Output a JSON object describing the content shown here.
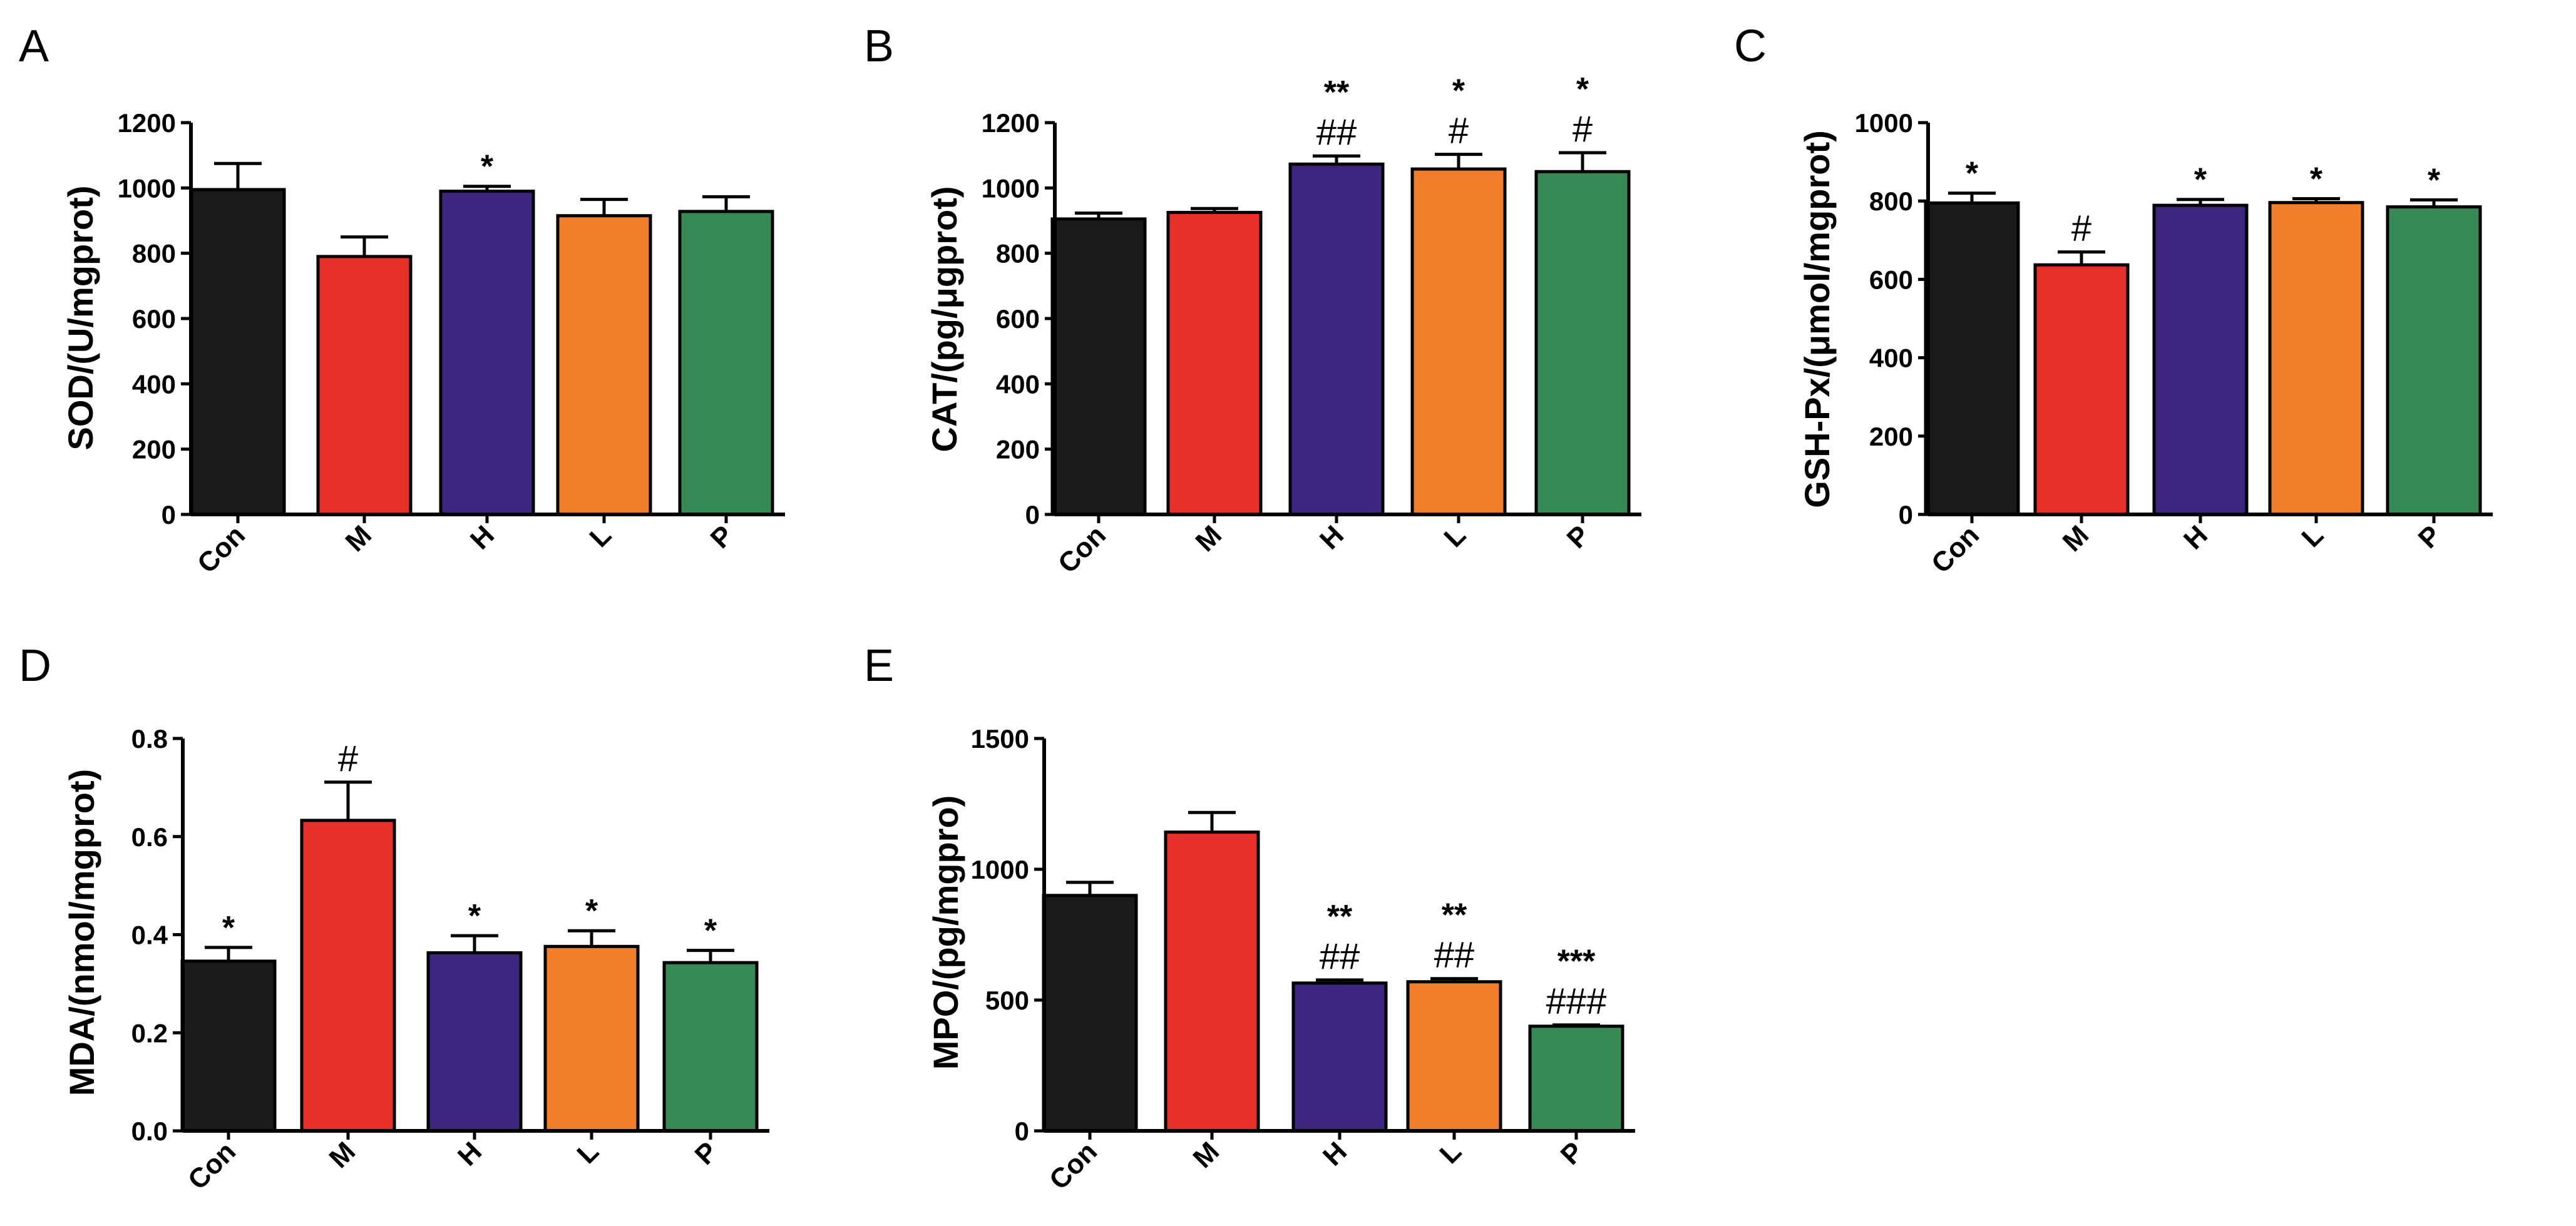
{
  "figure": {
    "colors": {
      "Con": "#1a1a1a",
      "M": "#e8302a",
      "H": "#3c2680",
      "L": "#f07e2a",
      "P": "#378a55",
      "axis": "#000000"
    }
  },
  "chart_data": [
    {
      "panel": "A",
      "type": "bar",
      "ylabel": "SOD/(U/mgprot)",
      "ylim": [
        0,
        1200
      ],
      "yticks": [
        0,
        200,
        400,
        600,
        800,
        1000,
        1200
      ],
      "categories": [
        "Con",
        "M",
        "H",
        "L",
        "P"
      ],
      "values": [
        995,
        790,
        990,
        915,
        928
      ],
      "errors": [
        80,
        60,
        15,
        50,
        45
      ],
      "significance": [
        "",
        "",
        "*",
        "",
        ""
      ],
      "hash": [
        "",
        "",
        "",
        "",
        ""
      ]
    },
    {
      "panel": "B",
      "type": "bar",
      "ylabel": "CAT/(pg/μgprot)",
      "ylim": [
        0,
        1200
      ],
      "yticks": [
        0,
        200,
        400,
        600,
        800,
        1000,
        1200
      ],
      "categories": [
        "Con",
        "M",
        "H",
        "L",
        "P"
      ],
      "values": [
        905,
        925,
        1073,
        1058,
        1050
      ],
      "errors": [
        18,
        12,
        25,
        45,
        58
      ],
      "significance": [
        "",
        "",
        "**",
        "*",
        "*"
      ],
      "hash": [
        "",
        "",
        "##",
        "#",
        "#"
      ]
    },
    {
      "panel": "C",
      "type": "bar",
      "ylabel": "GSH-Px/(μmol/mgprot)",
      "ylim": [
        0,
        1000
      ],
      "yticks": [
        0,
        200,
        400,
        600,
        800,
        1000
      ],
      "categories": [
        "Con",
        "M",
        "H",
        "L",
        "P"
      ],
      "values": [
        795,
        637,
        789,
        796,
        785
      ],
      "errors": [
        25,
        33,
        15,
        10,
        18
      ],
      "significance": [
        "*",
        "",
        "*",
        "*",
        "*"
      ],
      "hash": [
        "",
        "#",
        "",
        "",
        ""
      ]
    },
    {
      "panel": "D",
      "type": "bar",
      "ylabel": "MDA/(nmol/mgprot)",
      "ylim": [
        0,
        0.8
      ],
      "yticks": [
        "0.0",
        "0.2",
        "0.4",
        "0.6",
        "0.8"
      ],
      "categories": [
        "Con",
        "M",
        "H",
        "L",
        "P"
      ],
      "values": [
        0.346,
        0.633,
        0.363,
        0.376,
        0.343
      ],
      "errors": [
        0.028,
        0.078,
        0.035,
        0.032,
        0.025
      ],
      "significance": [
        "*",
        "",
        "*",
        "*",
        "*"
      ],
      "hash": [
        "",
        "#",
        "",
        "",
        ""
      ]
    },
    {
      "panel": "E",
      "type": "bar",
      "ylabel": "MPO/(pg/mgpro)",
      "ylim": [
        0,
        1500
      ],
      "yticks": [
        0,
        500,
        1000,
        1500
      ],
      "categories": [
        "Con",
        "M",
        "H",
        "L",
        "P"
      ],
      "values": [
        900,
        1142,
        565,
        570,
        400
      ],
      "errors": [
        50,
        75,
        12,
        12,
        5
      ],
      "significance": [
        "",
        "",
        "**",
        "**",
        "***"
      ],
      "hash": [
        "",
        "",
        "##",
        "##",
        "###"
      ]
    }
  ]
}
